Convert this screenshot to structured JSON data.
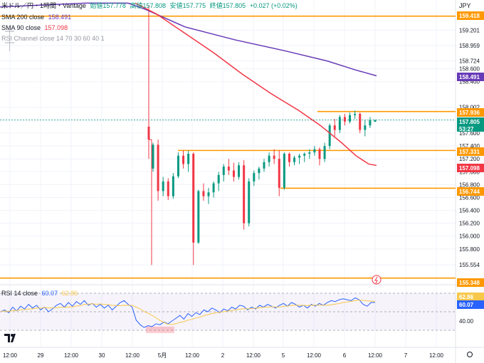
{
  "header": {
    "symbol": "米ドル／円・1時間・Vantage",
    "o_label": "始値",
    "o": "157.778",
    "h_label": "高値",
    "h": "157.808",
    "l_label": "安値",
    "l": "157.775",
    "c_label": "終値",
    "c": "157.805",
    "chg": "+0.027 (+0.02%)",
    "sma200_label": "SMA 200 close",
    "sma200_val": "158.491",
    "sma90_label": "SMA 90 close",
    "sma90_val": "157.098",
    "rsich_label": "RSI Channel close 14 70 30 60 40 1",
    "rsi_label": "RSI 14 close",
    "rsi_val": "60.07",
    "rsi_ma_val": "62.86",
    "currency": "JPY"
  },
  "colors": {
    "up": "#089981",
    "down": "#f23645",
    "sma200": "#673ab7",
    "sma90": "#f23645",
    "level": "#ff9800",
    "rsi": "#2962ff",
    "rsi_ma": "#f7c84a"
  },
  "chart_data": {
    "type": "candlestick",
    "price_ticks": [
      "159.201",
      "158.959",
      "158.724",
      "158.600",
      "158.400",
      "158.002",
      "157.800",
      "157.600",
      "157.400",
      "157.200",
      "157.000",
      "156.800",
      "156.600",
      "156.400",
      "156.200",
      "156.000",
      "155.800",
      "155.554"
    ],
    "x_ticks": [
      "12:00",
      "29",
      "12:00",
      "30",
      "12:00",
      "5月",
      "12:00",
      "2",
      "12:00",
      "5",
      "12:00",
      "6",
      "12:00",
      "7",
      "12:00"
    ],
    "levels": [
      "159.418",
      "157.936",
      "157.331",
      "156.744",
      "155.348"
    ],
    "price_labels": [
      {
        "text": "159.418",
        "kind": "level"
      },
      {
        "text": "158.491",
        "kind": "sma200"
      },
      {
        "text": "157.936",
        "kind": "level"
      },
      {
        "text": "157.805",
        "kind": "last"
      },
      {
        "text": "53:27",
        "kind": "last"
      },
      {
        "text": "157.331",
        "kind": "level"
      },
      {
        "text": "157.098",
        "kind": "sma90"
      },
      {
        "text": "156.744",
        "kind": "level"
      },
      {
        "text": "155.348",
        "kind": "level"
      }
    ],
    "rsi_ticks": [
      "60.00",
      "40.00"
    ],
    "rsi_labels": [
      "62.86",
      "60.07"
    ],
    "bars": [
      [
        157.05,
        157.45,
        157.0,
        157.42
      ],
      [
        157.42,
        157.5,
        156.55,
        156.7
      ],
      [
        156.7,
        156.92,
        156.62,
        156.85
      ],
      [
        156.85,
        156.9,
        156.56,
        156.62
      ],
      [
        156.62,
        156.98,
        156.58,
        156.93
      ],
      [
        156.93,
        157.3,
        156.9,
        157.25
      ],
      [
        157.25,
        157.33,
        157.05,
        157.12
      ],
      [
        157.12,
        157.33,
        157.0,
        157.28
      ],
      [
        157.28,
        157.3,
        155.55,
        155.9
      ],
      [
        155.9,
        156.72,
        155.88,
        156.7
      ],
      [
        156.7,
        156.82,
        156.55,
        156.62
      ],
      [
        156.62,
        156.75,
        156.5,
        156.68
      ],
      [
        156.68,
        156.85,
        156.6,
        156.82
      ],
      [
        156.82,
        157.0,
        156.7,
        156.95
      ],
      [
        156.95,
        157.12,
        156.85,
        157.08
      ],
      [
        157.08,
        157.2,
        156.95,
        157.02
      ],
      [
        157.02,
        157.14,
        156.85,
        156.92
      ],
      [
        156.92,
        157.15,
        156.88,
        157.1
      ],
      [
        157.1,
        157.18,
        156.1,
        156.2
      ],
      [
        156.2,
        156.9,
        156.15,
        156.85
      ],
      [
        156.85,
        157.02,
        156.78,
        156.98
      ],
      [
        156.98,
        157.08,
        156.88,
        157.05
      ],
      [
        157.05,
        157.2,
        157.0,
        157.15
      ],
      [
        157.15,
        157.3,
        157.08,
        157.25
      ],
      [
        157.25,
        157.35,
        157.12,
        157.2
      ],
      [
        157.2,
        157.33,
        156.62,
        156.75
      ],
      [
        156.75,
        157.3,
        156.72,
        157.28
      ],
      [
        157.28,
        157.3,
        157.08,
        157.15
      ],
      [
        157.15,
        157.25,
        157.1,
        157.22
      ],
      [
        157.22,
        157.28,
        157.12,
        157.25
      ],
      [
        157.25,
        157.3,
        157.15,
        157.28
      ],
      [
        157.28,
        157.35,
        157.2,
        157.3
      ],
      [
        157.3,
        157.4,
        157.25,
        157.35
      ],
      [
        157.35,
        157.38,
        157.1,
        157.2
      ],
      [
        157.2,
        157.45,
        157.15,
        157.4
      ],
      [
        157.4,
        157.75,
        157.35,
        157.72
      ],
      [
        157.72,
        157.82,
        157.55,
        157.65
      ],
      [
        157.65,
        157.88,
        157.6,
        157.85
      ],
      [
        157.85,
        157.9,
        157.72,
        157.78
      ],
      [
        157.78,
        157.92,
        157.75,
        157.88
      ],
      [
        157.88,
        157.95,
        157.82,
        157.9
      ],
      [
        157.9,
        157.92,
        157.6,
        157.65
      ],
      [
        157.65,
        157.8,
        157.55,
        157.72
      ],
      [
        157.72,
        157.85,
        157.68,
        157.8
      ],
      [
        157.778,
        157.808,
        157.775,
        157.805
      ]
    ],
    "bars_gap": [
      [
        157.7,
        159.58,
        157.2,
        157.5
      ]
    ],
    "rsi": [
      50,
      52,
      49,
      55,
      51,
      56,
      53,
      58,
      54,
      57,
      52,
      55,
      50,
      53,
      57,
      59,
      55,
      60,
      56,
      61,
      58,
      62,
      57,
      59,
      55,
      58,
      54,
      57,
      52,
      56,
      60,
      62,
      58,
      55,
      41,
      36,
      33,
      35,
      34,
      37,
      36,
      39,
      37,
      40,
      43,
      46,
      42,
      48,
      45,
      49,
      47,
      52,
      50,
      54,
      52,
      49,
      53,
      51,
      55,
      53,
      57,
      56,
      52,
      55,
      53,
      57,
      55,
      58,
      56,
      54,
      57,
      59,
      56,
      60,
      58,
      55,
      57,
      54,
      58,
      56,
      59,
      57,
      60,
      62,
      61,
      63,
      64,
      63,
      62,
      65,
      63,
      58,
      56,
      60,
      60.07
    ]
  }
}
